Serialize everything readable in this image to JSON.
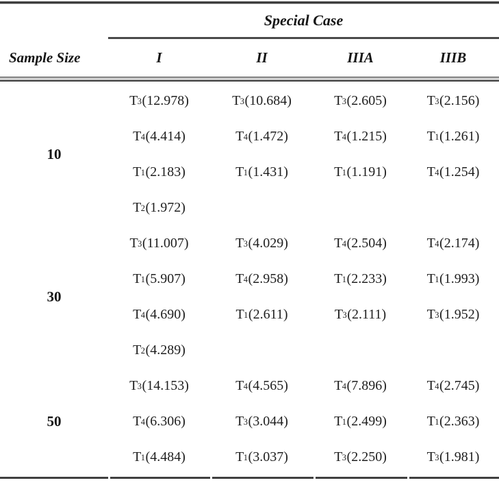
{
  "table": {
    "span_header": "Special Case",
    "row_header": "Sample Size",
    "columns": [
      "I",
      "II",
      "IIIA",
      "IIIB"
    ],
    "groups": [
      {
        "sample_size": "10",
        "rows": [
          [
            "T3 (12.978)",
            "T3 (10.684)",
            "T3 (2.605)",
            "T3 (2.156)"
          ],
          [
            "T4 (4.414)",
            "T4 (1.472)",
            "T4 (1.215)",
            "T1 (1.261)"
          ],
          [
            "T1 (2.183)",
            "T1 (1.431)",
            "T1 (1.191)",
            "T4 (1.254)"
          ],
          [
            "T2 (1.972)",
            "",
            "",
            ""
          ]
        ]
      },
      {
        "sample_size": "30",
        "rows": [
          [
            "T3 (11.007)",
            "T3 (4.029)",
            "T4 (2.504)",
            "T4 (2.174)"
          ],
          [
            "T1 (5.907)",
            "T4 (2.958)",
            "T1 (2.233)",
            "T1 (1.993)"
          ],
          [
            "T4 (4.690)",
            "T1 (2.611)",
            "T3 (2.111)",
            "T3 (1.952)"
          ],
          [
            "T2 (4.289)",
            "",
            "",
            ""
          ]
        ]
      },
      {
        "sample_size": "50",
        "rows": [
          [
            "T3 (14.153)",
            "T4 (4.565)",
            "T4 (7.896)",
            "T4 (2.745)"
          ],
          [
            "T4 (6.306)",
            "T3 (3.044)",
            "T1 (2.499)",
            "T1 (2.363)"
          ],
          [
            "T1 (4.484)",
            "T1 (3.037)",
            "T3 (2.250)",
            "T3 (1.981)"
          ]
        ]
      }
    ]
  },
  "colors": {
    "text": "#1c1c1c",
    "rule": "#3f3f3f",
    "background": "#ffffff"
  }
}
